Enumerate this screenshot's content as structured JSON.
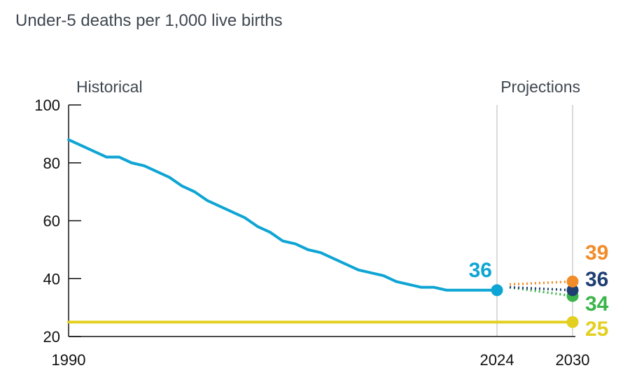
{
  "chart_data": {
    "type": "line",
    "title": "Under-5 deaths per 1,000 live births",
    "period_labels": {
      "historical": "Historical",
      "projections": "Projections"
    },
    "x_ticks": [
      "1990",
      "2024",
      "2030"
    ],
    "y_ticks": [
      20,
      40,
      60,
      80,
      100
    ],
    "xlim": [
      1990,
      2030
    ],
    "ylim": [
      20,
      100
    ],
    "grid": false,
    "colors": {
      "historical": "#0ea5d4",
      "scenario_orange": "#f28c28",
      "scenario_navy": "#1f3f73",
      "scenario_green": "#3bb54a",
      "target": "#e3cf1f"
    },
    "series": [
      {
        "key": "historical",
        "style": "solid",
        "x": [
          1990,
          1991,
          1992,
          1993,
          1994,
          1995,
          1996,
          1997,
          1998,
          1999,
          2000,
          2001,
          2002,
          2003,
          2004,
          2005,
          2006,
          2007,
          2008,
          2009,
          2010,
          2011,
          2012,
          2013,
          2014,
          2015,
          2016,
          2017,
          2018,
          2019,
          2020,
          2021,
          2022,
          2023,
          2024
        ],
        "y": [
          88,
          86,
          84,
          82,
          82,
          80,
          79,
          77,
          75,
          72,
          70,
          67,
          65,
          63,
          61,
          58,
          56,
          53,
          52,
          50,
          49,
          47,
          45,
          43,
          42,
          41,
          39,
          38,
          37,
          37,
          36,
          36,
          36,
          36,
          36
        ],
        "end_label": "36",
        "color_key": "historical"
      },
      {
        "key": "projection_orange",
        "style": "dotted",
        "x": [
          2025,
          2030
        ],
        "y": [
          38,
          39
        ],
        "end_label": "39",
        "color_key": "scenario_orange"
      },
      {
        "key": "projection_navy",
        "style": "dotted",
        "x": [
          2025,
          2030
        ],
        "y": [
          37,
          36
        ],
        "end_label": "36",
        "color_key": "scenario_navy"
      },
      {
        "key": "projection_green",
        "style": "dotted",
        "x": [
          2025,
          2030
        ],
        "y": [
          37,
          34
        ],
        "end_label": "34",
        "color_key": "scenario_green"
      },
      {
        "key": "target",
        "style": "solid",
        "x": [
          1990,
          2030
        ],
        "y": [
          25,
          25
        ],
        "end_label": "25",
        "color_key": "target"
      }
    ]
  }
}
